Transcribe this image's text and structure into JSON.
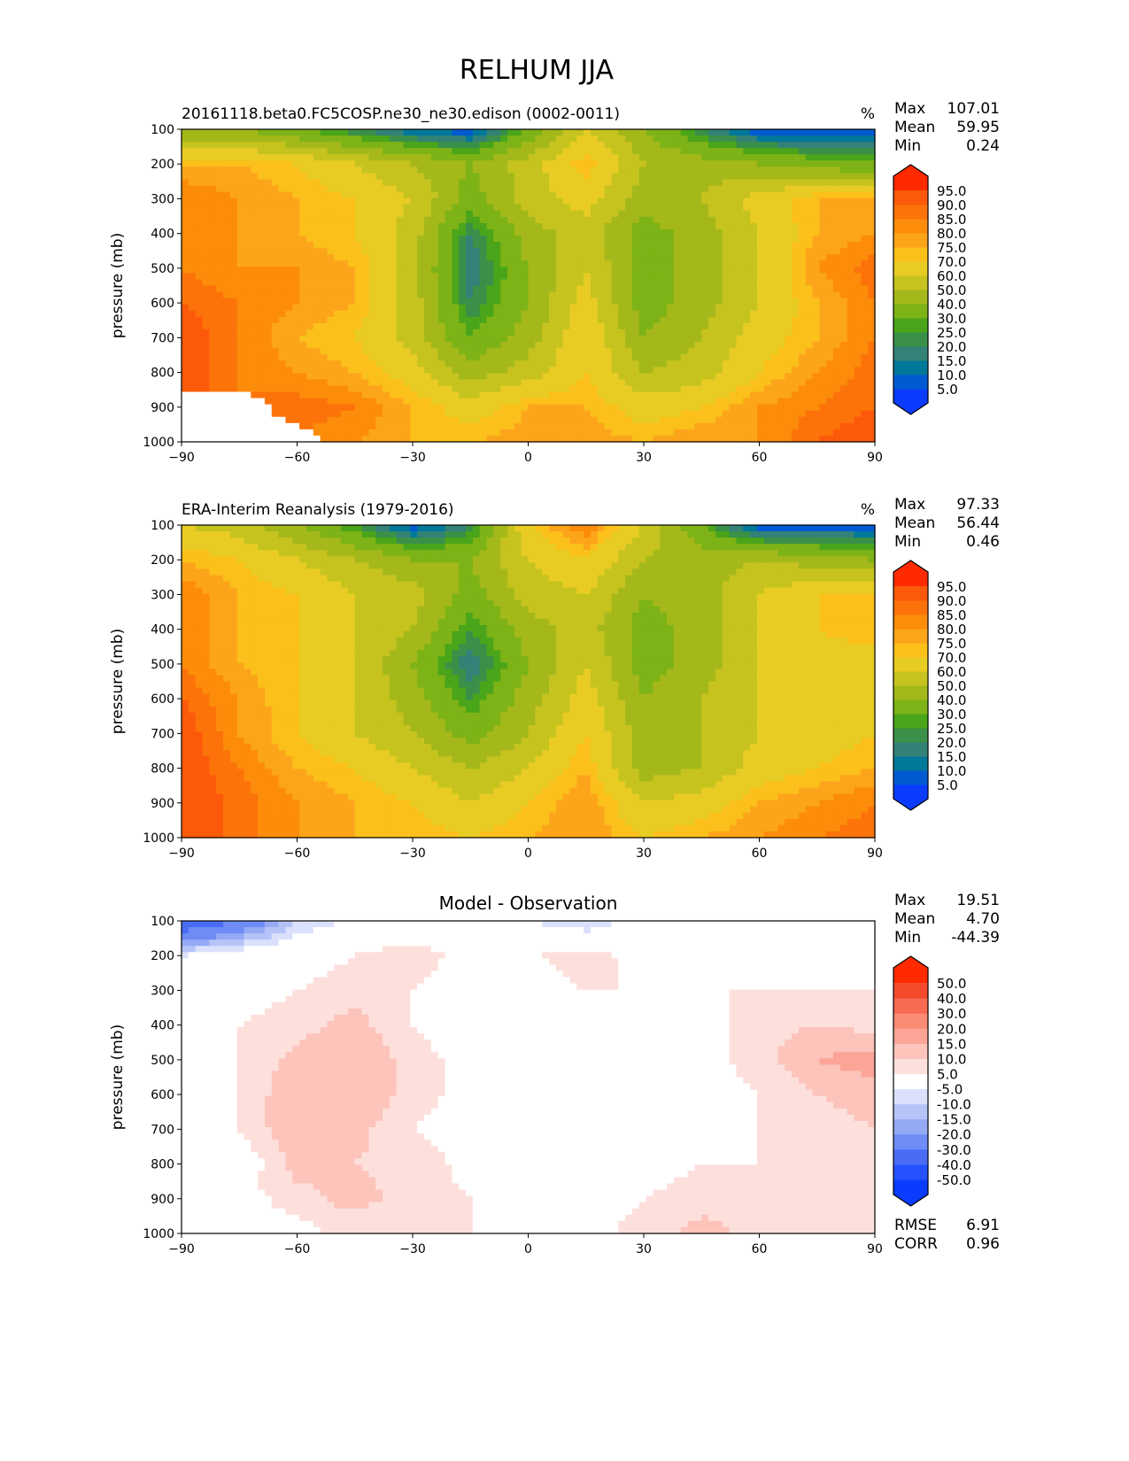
{
  "figure_title": "RELHUM JJA",
  "chart_data": [
    {
      "type": "heatmap",
      "title": "20161118.beta0.FC5COSP.ne30_ne30.edison (0002-0011)",
      "units": "%",
      "xlabel": "",
      "ylabel": "pressure (mb)",
      "xlim": [
        -90,
        90
      ],
      "ylim": [
        1000,
        100
      ],
      "x_ticks": [
        "−90",
        "−60",
        "−30",
        "0",
        "30",
        "60",
        "90"
      ],
      "y_ticks": [
        "100",
        "200",
        "300",
        "400",
        "500",
        "600",
        "700",
        "800",
        "900",
        "1000"
      ],
      "stats": {
        "max_label": "Max",
        "max": "107.01",
        "mean_label": "Mean",
        "mean": "59.95",
        "min_label": "Min",
        "min": "0.24"
      },
      "levels": [
        "5.0",
        "10.0",
        "15.0",
        "20.0",
        "25.0",
        "30.0",
        "40.0",
        "50.0",
        "60.0",
        "70.0",
        "75.0",
        "80.0",
        "85.0",
        "90.0",
        "95.0"
      ],
      "level_values": [
        5,
        10,
        15,
        20,
        25,
        30,
        40,
        50,
        60,
        70,
        75,
        80,
        85,
        90,
        95
      ],
      "colors": [
        "#0a3cff",
        "#005ad2",
        "#00789a",
        "#338277",
        "#3a9049",
        "#4aa51a",
        "#7db316",
        "#a4b81a",
        "#c6c31f",
        "#e8cc24",
        "#fbc01a",
        "#fca51a",
        "#fc8c0a",
        "#fc730a",
        "#fc5a0a",
        "#ff2a00"
      ],
      "lat": [
        -90,
        -75,
        -60,
        -45,
        -30,
        -15,
        0,
        15,
        30,
        45,
        60,
        75,
        90
      ],
      "pressure": [
        100,
        200,
        300,
        400,
        500,
        600,
        700,
        800,
        900,
        1000
      ],
      "values": [
        [
          40,
          40,
          30,
          20,
          10,
          5,
          30,
          60,
          40,
          20,
          5,
          5,
          5
        ],
        [
          75,
          75,
          70,
          60,
          50,
          40,
          55,
          75,
          50,
          45,
          40,
          35,
          30
        ],
        [
          85,
          80,
          75,
          70,
          60,
          35,
          55,
          65,
          45,
          50,
          65,
          75,
          75
        ],
        [
          85,
          80,
          75,
          70,
          55,
          20,
          45,
          55,
          35,
          45,
          60,
          75,
          80
        ],
        [
          85,
          80,
          80,
          75,
          55,
          15,
          40,
          60,
          35,
          45,
          60,
          80,
          88
        ],
        [
          90,
          85,
          80,
          75,
          55,
          20,
          40,
          65,
          35,
          45,
          60,
          75,
          85
        ],
        [
          95,
          85,
          75,
          70,
          55,
          30,
          45,
          70,
          40,
          50,
          65,
          75,
          85
        ],
        [
          95,
          85,
          80,
          75,
          65,
          45,
          55,
          70,
          50,
          55,
          70,
          80,
          88
        ],
        [
          null,
          null,
          88,
          85,
          75,
          65,
          75,
          75,
          65,
          70,
          80,
          85,
          90
        ],
        [
          null,
          null,
          null,
          80,
          75,
          75,
          78,
          78,
          75,
          80,
          80,
          90,
          95
        ]
      ]
    },
    {
      "type": "heatmap",
      "title": "ERA-Interim Reanalysis (1979-2016)",
      "units": "%",
      "xlabel": "",
      "ylabel": "pressure (mb)",
      "xlim": [
        -90,
        90
      ],
      "ylim": [
        1000,
        100
      ],
      "x_ticks": [
        "−90",
        "−60",
        "−30",
        "0",
        "30",
        "60",
        "90"
      ],
      "y_ticks": [
        "100",
        "200",
        "300",
        "400",
        "500",
        "600",
        "700",
        "800",
        "900",
        "1000"
      ],
      "stats": {
        "max_label": "Max",
        "max": "97.33",
        "mean_label": "Mean",
        "mean": "56.44",
        "min_label": "Min",
        "min": "0.46"
      },
      "levels": [
        "5.0",
        "10.0",
        "15.0",
        "20.0",
        "25.0",
        "30.0",
        "40.0",
        "50.0",
        "60.0",
        "70.0",
        "75.0",
        "80.0",
        "85.0",
        "90.0",
        "95.0"
      ],
      "level_values": [
        5,
        10,
        15,
        20,
        25,
        30,
        40,
        50,
        60,
        70,
        75,
        80,
        85,
        90,
        95
      ],
      "colors": [
        "#0a3cff",
        "#005ad2",
        "#00789a",
        "#338277",
        "#3a9049",
        "#4aa51a",
        "#7db316",
        "#a4b81a",
        "#c6c31f",
        "#e8cc24",
        "#fbc01a",
        "#fca51a",
        "#fc8c0a",
        "#fc730a",
        "#fc5a0a",
        "#ff2a00"
      ],
      "lat": [
        -90,
        -75,
        -60,
        -45,
        -30,
        -15,
        0,
        15,
        30,
        45,
        60,
        75,
        90
      ],
      "pressure": [
        100,
        200,
        300,
        400,
        500,
        600,
        700,
        800,
        900,
        1000
      ],
      "values": [
        [
          60,
          55,
          40,
          25,
          5,
          20,
          70,
          85,
          60,
          30,
          5,
          5,
          5
        ],
        [
          75,
          70,
          60,
          50,
          40,
          40,
          60,
          70,
          50,
          45,
          50,
          45,
          40
        ],
        [
          85,
          75,
          70,
          60,
          55,
          35,
          55,
          60,
          40,
          45,
          60,
          70,
          70
        ],
        [
          85,
          75,
          70,
          60,
          50,
          25,
          45,
          55,
          35,
          45,
          60,
          70,
          75
        ],
        [
          85,
          75,
          70,
          60,
          40,
          15,
          40,
          60,
          35,
          45,
          60,
          65,
          65
        ],
        [
          90,
          80,
          70,
          60,
          45,
          25,
          45,
          65,
          40,
          50,
          60,
          70,
          70
        ],
        [
          95,
          80,
          70,
          60,
          50,
          35,
          50,
          70,
          45,
          50,
          60,
          65,
          70
        ],
        [
          95,
          85,
          75,
          70,
          60,
          50,
          60,
          75,
          45,
          50,
          65,
          70,
          75
        ],
        [
          95,
          88,
          80,
          75,
          70,
          60,
          70,
          80,
          60,
          65,
          75,
          80,
          85
        ],
        [
          95,
          88,
          80,
          75,
          75,
          70,
          75,
          80,
          70,
          75,
          80,
          85,
          88
        ]
      ]
    },
    {
      "type": "heatmap",
      "title": "Model - Observation",
      "units": "",
      "xlabel": "",
      "ylabel": "pressure (mb)",
      "xlim": [
        -90,
        90
      ],
      "ylim": [
        1000,
        100
      ],
      "x_ticks": [
        "−90",
        "−60",
        "−30",
        "0",
        "30",
        "60",
        "90"
      ],
      "y_ticks": [
        "100",
        "200",
        "300",
        "400",
        "500",
        "600",
        "700",
        "800",
        "900",
        "1000"
      ],
      "stats": {
        "max_label": "Max",
        "max": "19.51",
        "mean_label": "Mean",
        "mean": "4.70",
        "min_label": "Min",
        "min": "-44.39",
        "rmse_label": "RMSE",
        "rmse": "6.91",
        "corr_label": "CORR",
        "corr": "0.96"
      },
      "levels": [
        "-50.0",
        "-40.0",
        "-30.0",
        "-20.0",
        "-15.0",
        "-10.0",
        "-5.0",
        "5.0",
        "10.0",
        "15.0",
        "20.0",
        "30.0",
        "40.0",
        "50.0"
      ],
      "level_values": [
        -50,
        -40,
        -30,
        -20,
        -15,
        -10,
        -5,
        5,
        10,
        15,
        20,
        30,
        40,
        50
      ],
      "colors": [
        "#0a3cff",
        "#2453ff",
        "#4a6cf5",
        "#6e8cf5",
        "#95aaf5",
        "#b6c3f7",
        "#dbe1fc",
        "#ffffff",
        "#fde0dc",
        "#fcc4bb",
        "#fca597",
        "#fa8a74",
        "#f86a51",
        "#f64a2c",
        "#ff2a00"
      ],
      "lat": [
        -90,
        -75,
        -60,
        -45,
        -30,
        -15,
        0,
        15,
        30,
        45,
        60,
        75,
        90
      ],
      "pressure": [
        100,
        200,
        300,
        400,
        500,
        600,
        700,
        800,
        900,
        1000
      ],
      "values": [
        [
          -40,
          -30,
          -10,
          -3,
          0,
          0,
          -5,
          -10,
          0,
          0,
          0,
          0,
          0
        ],
        [
          -5,
          0,
          2,
          5,
          8,
          3,
          4,
          8,
          2,
          0,
          0,
          0,
          0
        ],
        [
          0,
          2,
          5,
          8,
          5,
          0,
          2,
          5,
          5,
          5,
          5,
          5,
          5
        ],
        [
          0,
          5,
          8,
          12,
          5,
          0,
          2,
          2,
          2,
          2,
          8,
          10,
          8
        ],
        [
          0,
          5,
          12,
          15,
          8,
          2,
          2,
          2,
          2,
          2,
          8,
          15,
          18
        ],
        [
          0,
          5,
          15,
          15,
          8,
          2,
          0,
          2,
          0,
          2,
          5,
          10,
          12
        ],
        [
          0,
          5,
          15,
          12,
          5,
          2,
          0,
          0,
          -2,
          2,
          5,
          8,
          10
        ],
        [
          0,
          0,
          12,
          10,
          8,
          3,
          0,
          0,
          2,
          5,
          5,
          8,
          8
        ],
        [
          null,
          null,
          8,
          12,
          8,
          5,
          0,
          0,
          5,
          8,
          8,
          8,
          6
        ],
        [
          null,
          null,
          null,
          6,
          5,
          5,
          0,
          2,
          8,
          12,
          8,
          6,
          6
        ]
      ]
    }
  ]
}
